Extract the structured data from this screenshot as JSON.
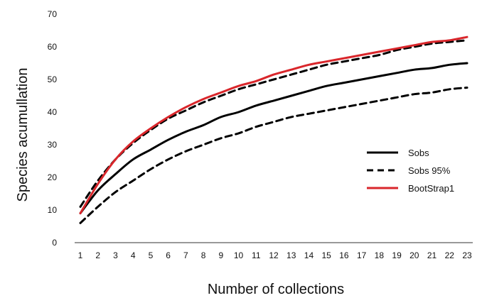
{
  "chart_data": {
    "type": "line",
    "title": "",
    "xlabel": "Number of collections",
    "ylabel": "Species acumullation",
    "x": [
      1,
      2,
      3,
      4,
      5,
      6,
      7,
      8,
      9,
      10,
      11,
      12,
      13,
      14,
      15,
      16,
      17,
      18,
      19,
      20,
      21,
      22,
      23
    ],
    "xlim": [
      1,
      23
    ],
    "ylim": [
      0,
      70
    ],
    "yticks": [
      0,
      10,
      20,
      30,
      40,
      50,
      60,
      70
    ],
    "grid": false,
    "legend_position": "right",
    "series": [
      {
        "name": "Sobs",
        "style": "solid",
        "color": "#000000",
        "values": [
          9.0,
          16.0,
          21.0,
          25.5,
          28.5,
          31.5,
          34.0,
          36.0,
          38.5,
          40.0,
          42.0,
          43.5,
          45.0,
          46.5,
          48.0,
          49.0,
          50.0,
          51.0,
          52.0,
          53.0,
          53.5,
          54.5,
          55.0
        ]
      },
      {
        "name": "Sobs 95%",
        "style": "dashed",
        "color": "#000000",
        "values": [
          6.0,
          11.0,
          15.5,
          19.0,
          22.5,
          25.5,
          28.0,
          30.0,
          32.0,
          33.5,
          35.5,
          37.0,
          38.5,
          39.5,
          40.5,
          41.5,
          42.5,
          43.5,
          44.5,
          45.5,
          46.0,
          47.0,
          47.5
        ]
      },
      {
        "name": "",
        "style": "dashed",
        "color": "#000000",
        "values": [
          11.0,
          19.0,
          25.5,
          30.5,
          34.5,
          38.0,
          40.5,
          43.0,
          45.0,
          47.0,
          48.5,
          50.0,
          51.5,
          53.0,
          54.5,
          55.5,
          56.5,
          57.5,
          59.0,
          60.0,
          61.0,
          61.5,
          62.0
        ]
      },
      {
        "name": "BootStrap1",
        "style": "solid",
        "color": "#d9262b",
        "values": [
          9.0,
          18.0,
          25.5,
          31.0,
          35.0,
          38.5,
          41.5,
          44.0,
          46.0,
          48.0,
          49.5,
          51.5,
          53.0,
          54.5,
          55.5,
          56.5,
          57.5,
          58.5,
          59.5,
          60.5,
          61.5,
          62.0,
          63.0
        ]
      }
    ]
  }
}
